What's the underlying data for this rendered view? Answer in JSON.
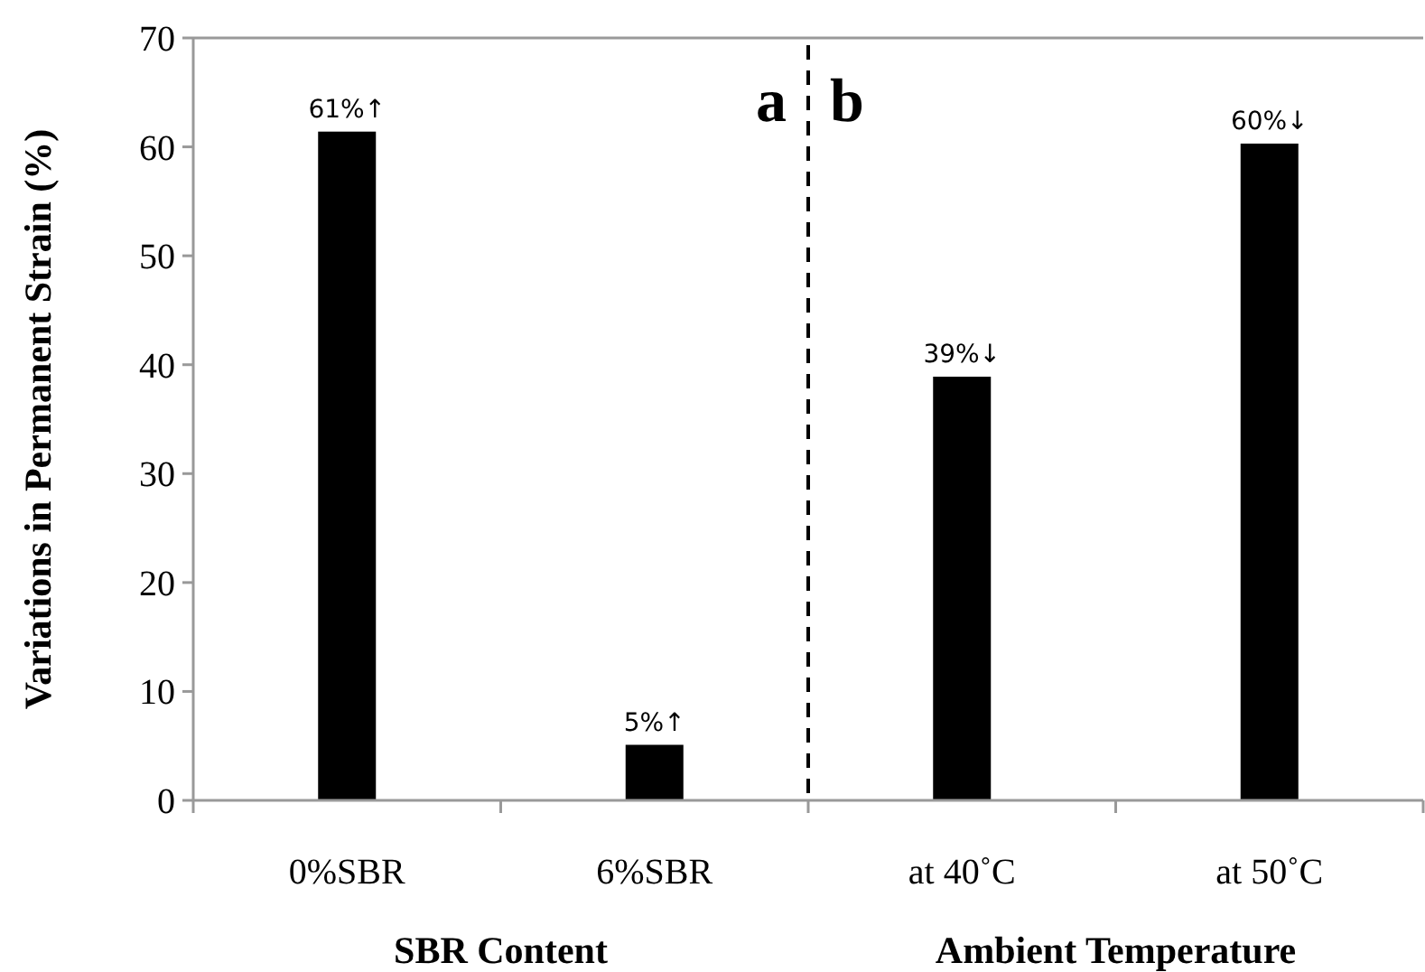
{
  "chart_data": {
    "type": "bar",
    "ylabel": "Variations in Permanent Strain (%)",
    "categories": [
      "0%SBR",
      "6%SBR",
      "at 40˚C",
      "at 50˚C"
    ],
    "values": [
      61.4,
      5.1,
      38.9,
      60.3
    ],
    "color": "#000000",
    "value_labels": [
      "61%↑",
      "5%↑",
      "39%↓",
      "60%↓"
    ],
    "ylim": [
      0,
      70
    ],
    "yticks": [
      0,
      10,
      20,
      30,
      40,
      50,
      60,
      70
    ],
    "grid": false,
    "annotations": [
      "a",
      "b",
      "SBR Content",
      "Ambient Temperature"
    ]
  }
}
